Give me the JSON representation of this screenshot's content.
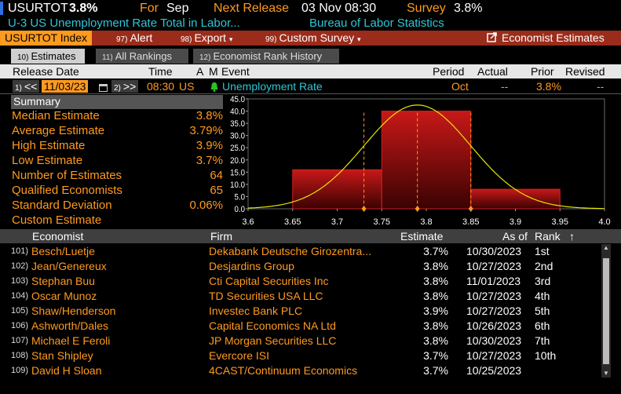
{
  "top": {
    "ticker": "USURTOT",
    "value": "3.8%",
    "for_label": "For",
    "for_value": "Sep",
    "next_release_label": "Next Release",
    "next_release_value": "03 Nov 08:30",
    "survey_label": "Survey",
    "survey_value": "3.8%",
    "description": "U-3 US Unemployment Rate Total in Labor...",
    "source": "Bureau of Labor Statistics"
  },
  "menu": {
    "index": "USURTOT Index",
    "alert_num": "97)",
    "alert": "Alert",
    "export_num": "98)",
    "export": "Export",
    "survey_num": "99)",
    "survey": "Custom Survey",
    "economist_estimates": "Economist Estimates",
    "dropdown": "▾"
  },
  "tabs": [
    {
      "num": "10)",
      "label": "Estimates"
    },
    {
      "num": "11)",
      "label": "All Rankings"
    },
    {
      "num": "12)",
      "label": "Economist Rank History"
    }
  ],
  "header": {
    "release_date": "Release Date",
    "time": "Time",
    "a": "A",
    "m": "M",
    "event": "Event",
    "period": "Period",
    "actual": "Actual",
    "prior": "Prior",
    "revised": "Revised"
  },
  "release": {
    "prev_num": "1)",
    "prev": "<<",
    "date": "11/03/23",
    "next_num": "2)",
    "next": ">>",
    "time": "08:30",
    "country": "US",
    "event": "Unemployment Rate",
    "period": "Oct",
    "actual": "--",
    "prior": "3.8%",
    "revised": "--"
  },
  "summary": {
    "title": "Summary",
    "rows": [
      {
        "label": "Median Estimate",
        "value": "3.8%"
      },
      {
        "label": "Average Estimate",
        "value": "3.79%"
      },
      {
        "label": "High Estimate",
        "value": "3.9%"
      },
      {
        "label": "Low Estimate",
        "value": "3.7%"
      },
      {
        "label": "Number of Estimates",
        "value": "64"
      },
      {
        "label": "Qualified Economists",
        "value": "65"
      },
      {
        "label": "Standard Deviation",
        "value": "0.06%"
      },
      {
        "label": "Custom Estimate",
        "value": ""
      }
    ]
  },
  "chart_data": {
    "type": "bar",
    "x_ticks": [
      "3.6",
      "3.65",
      "3.7",
      "3.75",
      "3.8",
      "3.85",
      "3.9",
      "3.95",
      "4.0"
    ],
    "y_ticks": [
      "0.0",
      "5.0",
      "10.0",
      "15.0",
      "20.0",
      "25.0",
      "30.0",
      "35.0",
      "40.0",
      "45.0"
    ],
    "xlim": [
      3.6,
      4.0
    ],
    "ylim": [
      0,
      45
    ],
    "bins": [
      {
        "from": 3.65,
        "to": 3.75,
        "value": 16
      },
      {
        "from": 3.75,
        "to": 3.85,
        "value": 40
      },
      {
        "from": 3.85,
        "to": 3.95,
        "value": 8
      }
    ],
    "curve": {
      "mean": 3.79,
      "std": 0.06,
      "peak": 42.5
    },
    "markers": [
      3.73,
      3.79,
      3.85
    ],
    "colors": {
      "bar": "#a01010",
      "curve": "#e6e600",
      "marker": "#ff9a1f"
    }
  },
  "table": {
    "columns": {
      "economist": "Economist",
      "firm": "Firm",
      "estimate": "Estimate",
      "as_of": "As of",
      "rank": "Rank",
      "sort": "↑"
    },
    "rows": [
      {
        "idx": "101)",
        "economist": "Besch/Luetje",
        "firm": "Dekabank Deutsche Girozentra...",
        "estimate": "3.7%",
        "as_of": "10/30/2023",
        "rank": "1st"
      },
      {
        "idx": "102)",
        "economist": "Jean/Genereux",
        "firm": "Desjardins Group",
        "estimate": "3.8%",
        "as_of": "10/27/2023",
        "rank": "2nd"
      },
      {
        "idx": "103)",
        "economist": "Stephan Buu",
        "firm": "Cti Capital Securities Inc",
        "estimate": "3.8%",
        "as_of": "11/01/2023",
        "rank": "3rd"
      },
      {
        "idx": "104)",
        "economist": "Oscar Munoz",
        "firm": "TD Securities USA LLC",
        "estimate": "3.8%",
        "as_of": "10/27/2023",
        "rank": "4th"
      },
      {
        "idx": "105)",
        "economist": "Shaw/Henderson",
        "firm": "Investec Bank PLC",
        "estimate": "3.9%",
        "as_of": "10/27/2023",
        "rank": "5th"
      },
      {
        "idx": "106)",
        "economist": "Ashworth/Dales",
        "firm": "Capital Economics NA Ltd",
        "estimate": "3.8%",
        "as_of": "10/26/2023",
        "rank": "6th"
      },
      {
        "idx": "107)",
        "economist": "Michael E Feroli",
        "firm": "JP Morgan Securities LLC",
        "estimate": "3.8%",
        "as_of": "10/30/2023",
        "rank": "7th"
      },
      {
        "idx": "108)",
        "economist": "Stan Shipley",
        "firm": "Evercore ISI",
        "estimate": "3.7%",
        "as_of": "10/27/2023",
        "rank": "10th"
      },
      {
        "idx": "109)",
        "economist": "David H Sloan",
        "firm": "4CAST/Continuum Economics",
        "estimate": "3.7%",
        "as_of": "10/25/2023",
        "rank": ""
      }
    ]
  }
}
